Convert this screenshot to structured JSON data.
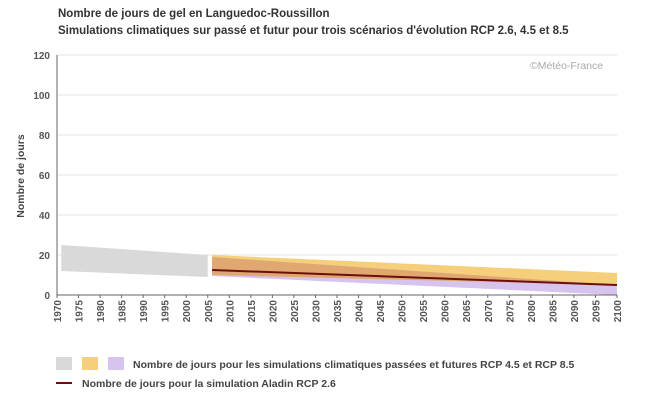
{
  "chart_data": {
    "type": "area",
    "title": "Nombre de jours de gel en Languedoc-Roussillon",
    "subtitle": "Simulations climatiques sur passé et futur pour trois scénarios d'évolution RCP 2.6, 4.5 et 8.5",
    "credit": "©Météo-France",
    "ylabel": "Nombre de jours",
    "xlabel": "",
    "xlim": [
      1970,
      2100
    ],
    "ylim": [
      0,
      120
    ],
    "yticks": [
      0,
      20,
      40,
      60,
      80,
      100,
      120
    ],
    "xticks": [
      1970,
      1975,
      1980,
      1985,
      1990,
      1995,
      2000,
      2005,
      2010,
      2015,
      2020,
      2025,
      2030,
      2035,
      2040,
      2045,
      2050,
      2055,
      2060,
      2065,
      2070,
      2075,
      2080,
      2085,
      2090,
      2095,
      2100
    ],
    "grid": true,
    "colors": {
      "past": "#d9d9d9",
      "rcp45": "#f5cf7a",
      "rcp85": "#d6c4ee",
      "overlap": "#e0a870",
      "aladin": "#6b0f0f"
    },
    "series": [
      {
        "key": "past",
        "x": [
          1971,
          2005
        ],
        "lower": [
          12,
          9
        ],
        "upper": [
          25,
          20
        ]
      },
      {
        "key": "rcp45",
        "x": [
          2006,
          2100
        ],
        "lower": [
          10,
          5
        ],
        "upper": [
          20,
          11
        ]
      },
      {
        "key": "rcp85",
        "x": [
          2006,
          2100
        ],
        "lower": [
          9.5,
          0
        ],
        "upper": [
          19,
          5
        ]
      },
      {
        "key": "aladin",
        "x": [
          2006,
          2100
        ],
        "y": [
          12.5,
          5
        ]
      }
    ],
    "legend": {
      "band_label": "Nombre de jours pour les simulations climatiques passées et futures RCP 4.5 et RCP 8.5",
      "line_label": "Nombre de jours pour la simulation Aladin RCP 2.6"
    }
  }
}
